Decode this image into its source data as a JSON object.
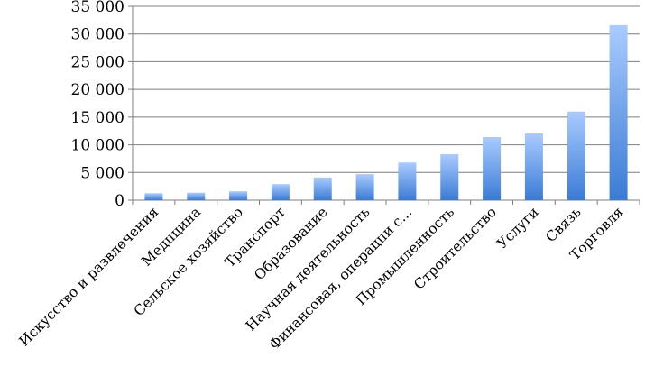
{
  "chart_data": {
    "type": "bar",
    "title": "",
    "xlabel": "",
    "ylabel": "",
    "ylim": [
      0,
      35000
    ],
    "yticks": [
      0,
      5000,
      10000,
      15000,
      20000,
      25000,
      30000,
      35000
    ],
    "ytick_labels": [
      "0",
      "5 000",
      "10 000",
      "15 000",
      "20 000",
      "25 000",
      "30 000",
      "35 000"
    ],
    "grid": true,
    "legend": "none",
    "categories": [
      "Искусство и развлечения",
      "Медицина",
      "Сельское хозяйство",
      "Транспорт",
      "Образование",
      "Научная деятельность",
      "Финансовая, операции с...",
      "Промышленность",
      "Строительство",
      "Услуги",
      "Связь",
      "Торговля"
    ],
    "values": [
      1250,
      1350,
      1600,
      2900,
      4100,
      4700,
      6800,
      8300,
      11400,
      12050,
      16000,
      31600
    ],
    "colors": {
      "bar_top": "#a9cbff",
      "bar_bottom": "#3a7bd5",
      "grid": "#7f7f7f"
    }
  }
}
